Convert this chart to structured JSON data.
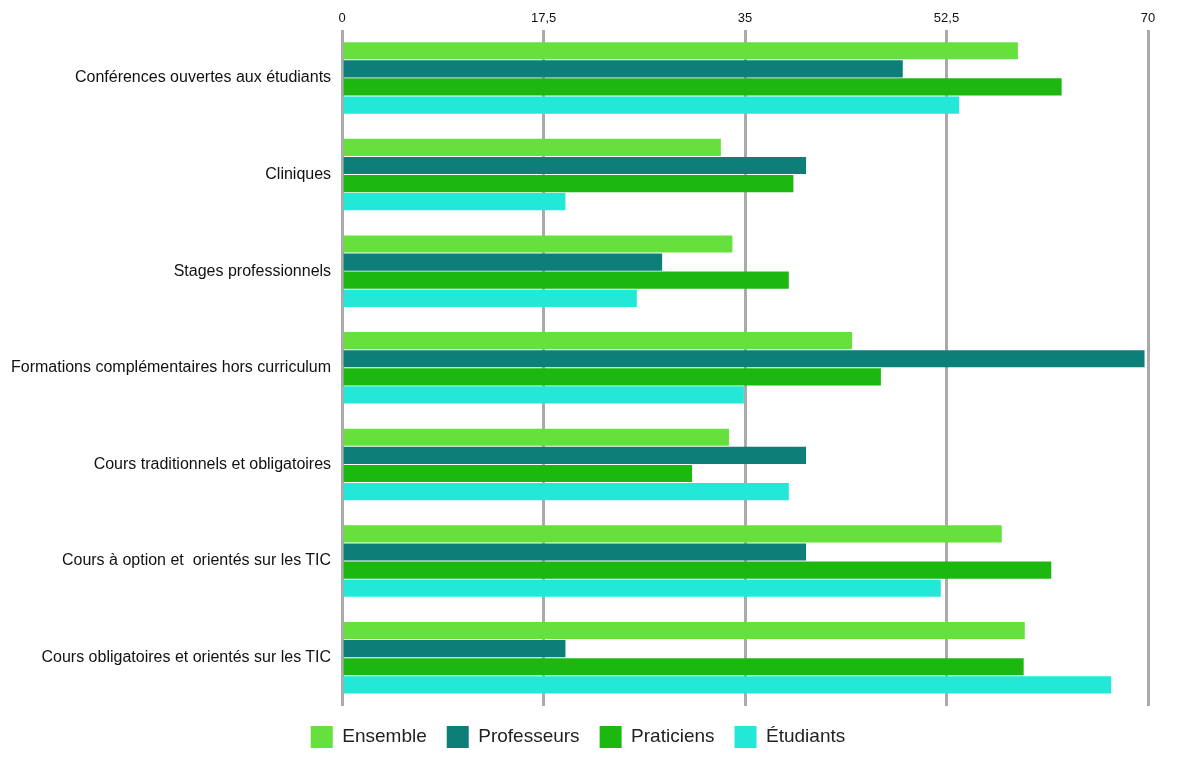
{
  "chart_data": {
    "type": "bar",
    "orientation": "horizontal",
    "categories": [
      "Conférences ouvertes aux étudiants",
      "Cliniques",
      "Stages professionnels",
      "Formations complémentaires hors curriculum",
      "Cours traditionnels et obligatoires",
      "Cours à option et  orientés sur les TIC",
      "Cours obligatoires et orientés sur les TIC"
    ],
    "series": [
      {
        "name": "Ensemble",
        "color": "#66e03c",
        "values": [
          58.7,
          32.9,
          33.9,
          44.3,
          33.6,
          57.3,
          59.3
        ]
      },
      {
        "name": "Professeurs",
        "color": "#0d7f78",
        "values": [
          48.7,
          40.3,
          27.8,
          69.7,
          40.3,
          40.3,
          19.4
        ]
      },
      {
        "name": "Praticiens",
        "color": "#1db80f",
        "values": [
          62.5,
          39.2,
          38.8,
          46.8,
          30.4,
          61.6,
          59.2
        ]
      },
      {
        "name": "Étudiants",
        "color": "#22e8d8",
        "values": [
          53.6,
          19.4,
          25.6,
          34.9,
          38.8,
          52.0,
          66.8
        ]
      }
    ],
    "xlim": [
      0,
      70
    ],
    "xticks": [
      0,
      {
        "value": 17.5,
        "label": "17,5"
      },
      35,
      {
        "value": 52.5,
        "label": "52,5"
      },
      70
    ],
    "grid": "x",
    "legend": "bottom"
  }
}
